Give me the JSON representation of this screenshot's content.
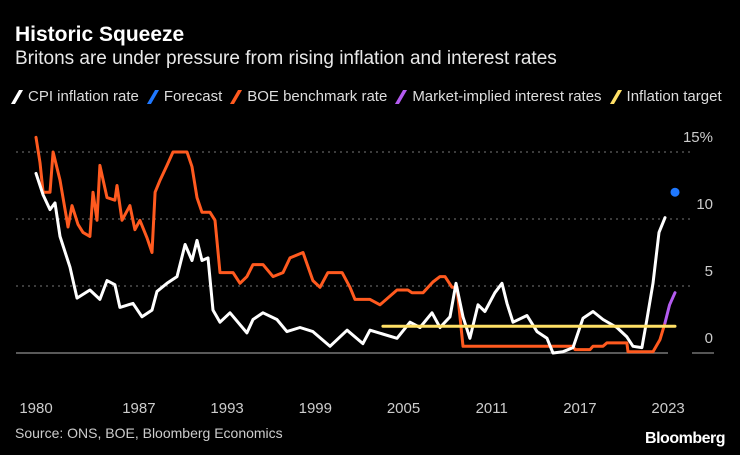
{
  "header": {
    "title": "Historic Squeeze",
    "subtitle": "Britons are under pressure from rising inflation and interest rates"
  },
  "footer": {
    "source": "Source: ONS, BOE, Bloomberg Economics",
    "logo": "Bloomberg"
  },
  "chart_data": {
    "type": "line",
    "title": "Historic Squeeze",
    "subtitle": "Britons are under pressure from rising inflation and interest rates",
    "xlim": [
      1980,
      2024.5
    ],
    "ylim": [
      -1.5,
      15
    ],
    "yticks": [
      {
        "v": 15,
        "label": "15%"
      },
      {
        "v": 10,
        "label": "10"
      },
      {
        "v": 5,
        "label": "5"
      },
      {
        "v": 0,
        "label": "0"
      }
    ],
    "xticks": [
      {
        "v": 1980,
        "label": "1980"
      },
      {
        "v": 1987,
        "label": "1987"
      },
      {
        "v": 1993,
        "label": "1993"
      },
      {
        "v": 1999,
        "label": "1999"
      },
      {
        "v": 2005,
        "label": "2005"
      },
      {
        "v": 2011,
        "label": "2011"
      },
      {
        "v": 2017,
        "label": "2017"
      },
      {
        "v": 2023,
        "label": "2023"
      }
    ],
    "grid": true,
    "legend_placement": "top",
    "series": [
      {
        "name": "CPI inflation rate",
        "color": "#ffffff",
        "kind": "line",
        "points": [
          [
            1980,
            13.4
          ],
          [
            1980.48,
            11.8
          ],
          [
            1980.95,
            10.7
          ],
          [
            1981.29,
            11.2
          ],
          [
            1981.63,
            8.7
          ],
          [
            1982.31,
            6.4
          ],
          [
            1982.79,
            4.1
          ],
          [
            1983.67,
            4.7
          ],
          [
            1984.35,
            4.0
          ],
          [
            1984.83,
            5.4
          ],
          [
            1985.37,
            5.1
          ],
          [
            1985.71,
            3.4
          ],
          [
            1986.6,
            3.7
          ],
          [
            1987.21,
            2.7
          ],
          [
            1987.89,
            3.2
          ],
          [
            1988.23,
            4.6
          ],
          [
            1988.91,
            5.2
          ],
          [
            1989.59,
            5.7
          ],
          [
            1990.14,
            8.1
          ],
          [
            1990.61,
            6.9
          ],
          [
            1990.95,
            8.4
          ],
          [
            1991.29,
            6.9
          ],
          [
            1991.7,
            7.1
          ],
          [
            1992.04,
            3.2
          ],
          [
            1992.52,
            2.3
          ],
          [
            1993.2,
            3.0
          ],
          [
            1994.35,
            1.5
          ],
          [
            1994.76,
            2.5
          ],
          [
            1995.44,
            3.0
          ],
          [
            1996.39,
            2.5
          ],
          [
            1997.07,
            1.6
          ],
          [
            1997.96,
            1.9
          ],
          [
            1998.84,
            1.6
          ],
          [
            2000.0,
            0.5
          ],
          [
            2001.16,
            1.7
          ],
          [
            2002.24,
            0.7
          ],
          [
            2002.72,
            1.7
          ],
          [
            2004.56,
            1.1
          ],
          [
            2005.44,
            2.3
          ],
          [
            2006.12,
            1.9
          ],
          [
            2006.94,
            3.0
          ],
          [
            2007.48,
            1.9
          ],
          [
            2008.16,
            2.7
          ],
          [
            2008.57,
            5.2
          ],
          [
            2009.05,
            2.7
          ],
          [
            2009.52,
            1.1
          ],
          [
            2010.07,
            3.6
          ],
          [
            2010.54,
            3.1
          ],
          [
            2011.22,
            4.5
          ],
          [
            2011.7,
            5.2
          ],
          [
            2012.04,
            3.7
          ],
          [
            2012.45,
            2.3
          ],
          [
            2013.4,
            2.8
          ],
          [
            2014.08,
            1.6
          ],
          [
            2014.76,
            1.1
          ],
          [
            2015.17,
            0.0
          ],
          [
            2015.85,
            0.1
          ],
          [
            2016.53,
            0.4
          ],
          [
            2017.21,
            2.6
          ],
          [
            2017.89,
            3.1
          ],
          [
            2018.57,
            2.5
          ],
          [
            2019.52,
            1.9
          ],
          [
            2020.2,
            1.2
          ],
          [
            2020.61,
            0.5
          ],
          [
            2021.22,
            0.4
          ],
          [
            2021.56,
            2.5
          ],
          [
            2021.97,
            5.2
          ],
          [
            2022.38,
            9.0
          ],
          [
            2022.79,
            10.1
          ]
        ]
      },
      {
        "name": "Forecast",
        "color": "#1f78ff",
        "kind": "dot",
        "points": [
          [
            2023.47,
            12.0
          ]
        ]
      },
      {
        "name": "BOE benchmark rate",
        "color": "#ff5a1f",
        "kind": "line",
        "points": [
          [
            1980,
            16.1
          ],
          [
            1980.27,
            14.2
          ],
          [
            1980.48,
            12.0
          ],
          [
            1980.95,
            12.0
          ],
          [
            1981.16,
            15.0
          ],
          [
            1981.63,
            12.9
          ],
          [
            1982.1,
            9.9
          ],
          [
            1982.18,
            9.4
          ],
          [
            1982.45,
            11.0
          ],
          [
            1982.86,
            9.6
          ],
          [
            1983.2,
            9.0
          ],
          [
            1983.67,
            8.7
          ],
          [
            1983.88,
            12.0
          ],
          [
            1984.15,
            9.9
          ],
          [
            1984.35,
            14.0
          ],
          [
            1984.83,
            11.6
          ],
          [
            1985.37,
            11.4
          ],
          [
            1985.51,
            12.5
          ],
          [
            1985.85,
            9.9
          ],
          [
            1986.39,
            11.0
          ],
          [
            1986.73,
            9.2
          ],
          [
            1987.07,
            9.9
          ],
          [
            1987.55,
            8.6
          ],
          [
            1987.89,
            7.5
          ],
          [
            1988.1,
            12.0
          ],
          [
            1988.44,
            12.9
          ],
          [
            1988.91,
            14.0
          ],
          [
            1989.32,
            15.0
          ],
          [
            1990.27,
            15.0
          ],
          [
            1990.61,
            13.9
          ],
          [
            1990.95,
            11.6
          ],
          [
            1991.29,
            10.5
          ],
          [
            1991.84,
            10.5
          ],
          [
            1992.18,
            9.9
          ],
          [
            1992.52,
            6.0
          ],
          [
            1993.4,
            6.0
          ],
          [
            1993.88,
            5.2
          ],
          [
            1994.35,
            5.7
          ],
          [
            1994.76,
            6.6
          ],
          [
            1995.44,
            6.6
          ],
          [
            1996.12,
            5.7
          ],
          [
            1996.8,
            6.0
          ],
          [
            1997.28,
            7.1
          ],
          [
            1998.16,
            7.5
          ],
          [
            1998.84,
            5.4
          ],
          [
            1999.32,
            4.9
          ],
          [
            1999.86,
            6.0
          ],
          [
            2000.82,
            6.0
          ],
          [
            2001.36,
            4.9
          ],
          [
            2001.7,
            4.0
          ],
          [
            2002.72,
            4.0
          ],
          [
            2003.4,
            3.6
          ],
          [
            2004.56,
            4.7
          ],
          [
            2005.3,
            4.7
          ],
          [
            2005.58,
            4.5
          ],
          [
            2006.33,
            4.5
          ],
          [
            2007.0,
            5.3
          ],
          [
            2007.48,
            5.7
          ],
          [
            2007.82,
            5.7
          ],
          [
            2008.3,
            4.9
          ],
          [
            2008.64,
            4.9
          ],
          [
            2009.05,
            0.5
          ],
          [
            2016.53,
            0.5
          ],
          [
            2016.67,
            0.25
          ],
          [
            2017.69,
            0.25
          ],
          [
            2017.89,
            0.5
          ],
          [
            2018.57,
            0.5
          ],
          [
            2018.84,
            0.75
          ],
          [
            2020.2,
            0.75
          ],
          [
            2020.27,
            0.1
          ],
          [
            2021.97,
            0.1
          ],
          [
            2022.45,
            1.0
          ],
          [
            2022.79,
            2.25
          ]
        ]
      },
      {
        "name": "Market-implied interest rates",
        "color": "#b45cf0",
        "kind": "line",
        "points": [
          [
            2022.79,
            2.25
          ],
          [
            2023.1,
            3.6
          ],
          [
            2023.47,
            4.5
          ]
        ]
      },
      {
        "name": "Inflation target",
        "color": "#ffe066",
        "kind": "line",
        "points": [
          [
            2003.6,
            2.0
          ],
          [
            2023.47,
            2.0
          ]
        ]
      }
    ]
  }
}
